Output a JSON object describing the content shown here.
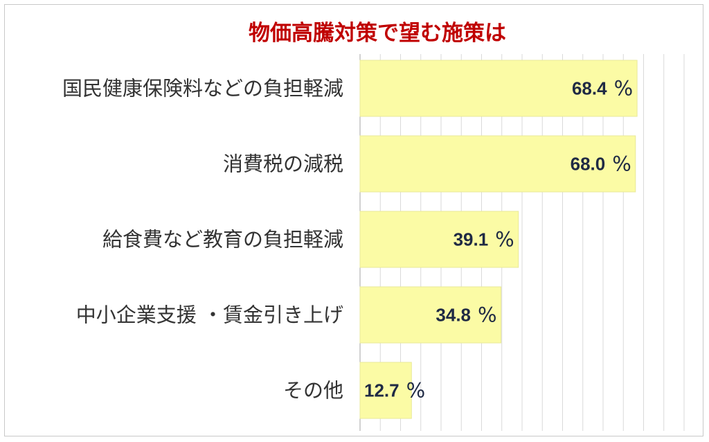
{
  "chart_data": {
    "type": "bar",
    "orientation": "horizontal",
    "title": "物価高騰対策で望む施策は",
    "categories": [
      "国民健康保険料などの負担軽減",
      "消費税の減税",
      "給食費など教育の負担軽減",
      "中小企業支援 ・賃金引き上げ",
      "その他"
    ],
    "values": [
      68.4,
      68.0,
      39.1,
      34.8,
      12.7
    ],
    "value_labels": [
      "68.4",
      "68.0",
      "39.1",
      "34.8",
      "12.7"
    ],
    "unit": "%",
    "xlim": [
      0,
      80
    ],
    "grid": true,
    "legend": "none",
    "colors": {
      "bar": "#fbfba5",
      "bar_border": "#e9e99a",
      "title": "#c00000",
      "value_text": "#1f2a44",
      "category_text": "#333333",
      "grid": "#d9d9d9"
    }
  }
}
